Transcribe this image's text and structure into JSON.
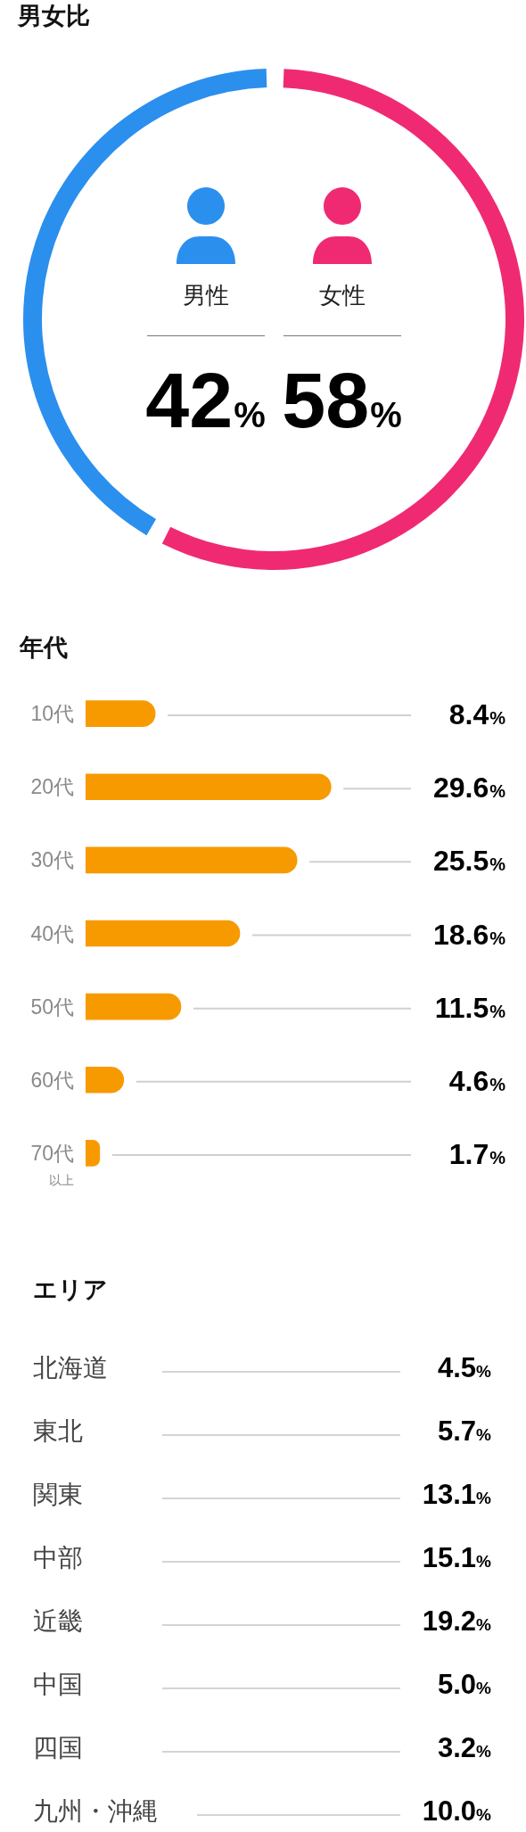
{
  "chart_data": [
    {
      "type": "donut",
      "title": "男女比",
      "categories": [
        "男性",
        "女性"
      ],
      "values": [
        42,
        58
      ],
      "colors": [
        "#2b8fee",
        "#ef2a73"
      ],
      "value_labels": [
        "42%",
        "58%"
      ],
      "legend": "center"
    },
    {
      "type": "bar",
      "orientation": "horizontal",
      "title": "年代",
      "categories": [
        "10代",
        "20代",
        "30代",
        "40代",
        "50代",
        "60代",
        "70代以上"
      ],
      "values": [
        8.4,
        29.6,
        25.5,
        18.6,
        11.5,
        4.6,
        1.7
      ],
      "color": "#f79a00",
      "value_labels": [
        "8.4%",
        "29.6%",
        "25.5%",
        "18.6%",
        "11.5%",
        "4.6%",
        "1.7%"
      ]
    },
    {
      "type": "other",
      "title": "エリア",
      "categories": [
        "北海道",
        "東北",
        "関東",
        "中部",
        "近畿",
        "中国",
        "四国",
        "九州・沖縄"
      ],
      "values": [
        4.5,
        5.7,
        13.1,
        15.1,
        19.2,
        5.0,
        3.2,
        10.0
      ],
      "value_labels": [
        "4.5%",
        "5.7%",
        "13.1%",
        "15.1%",
        "19.2%",
        "5.0%",
        "3.2%",
        "10.0%"
      ]
    }
  ]
}
